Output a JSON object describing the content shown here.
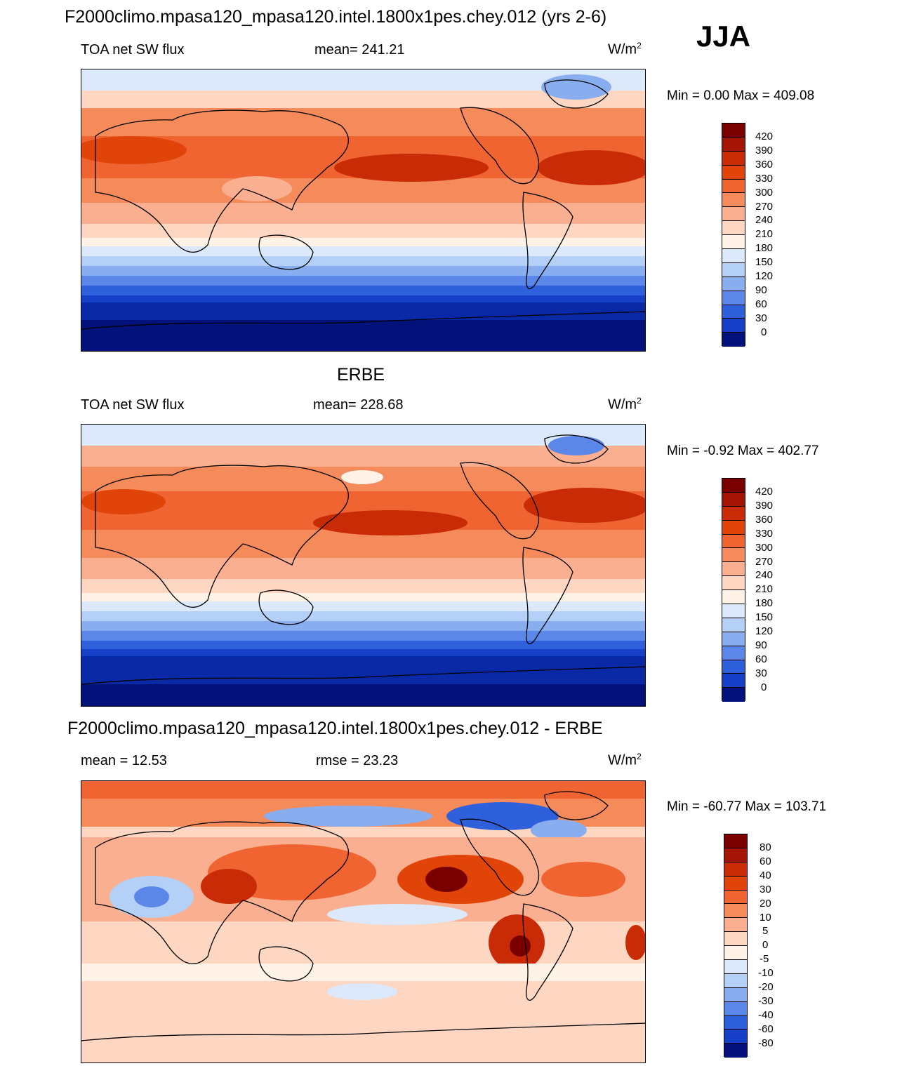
{
  "header": {
    "main_title": "F2000climo.mpasa120_mpasa120.intel.1800x1pes.chey.012 (yrs 2-6)",
    "season": "JJA"
  },
  "panels": [
    {
      "id": "model",
      "title": "",
      "left_label": "TOA net SW flux",
      "center_label": "mean= 241.21",
      "units_base": "W/m",
      "units_exp": "2",
      "minmax": "Min =   0.00 Max = 409.08",
      "levels": [
        "420",
        "390",
        "360",
        "330",
        "300",
        "270",
        "240",
        "210",
        "180",
        "150",
        "120",
        "90",
        "60",
        "30",
        "0"
      ],
      "colors": [
        "#7a0000",
        "#a51505",
        "#c92b06",
        "#e14408",
        "#ef6430",
        "#f58a5a",
        "#fab090",
        "#fdd7c1",
        "#fff2e6",
        "#dbe9fb",
        "#b4d0f7",
        "#88aef0",
        "#5a87e8",
        "#2f60db",
        "#1640c8",
        "#0a29a6",
        "#03127a"
      ],
      "colorbar_title": ""
    },
    {
      "id": "obs",
      "title": "ERBE",
      "left_label": "TOA net SW flux",
      "center_label": "mean= 228.68",
      "units_base": "W/m",
      "units_exp": "2",
      "minmax": "Min =  -0.92 Max = 402.77",
      "levels": [
        "420",
        "390",
        "360",
        "330",
        "300",
        "270",
        "240",
        "210",
        "180",
        "150",
        "120",
        "90",
        "60",
        "30",
        "0"
      ],
      "colors": [
        "#7a0000",
        "#a51505",
        "#c92b06",
        "#e14408",
        "#ef6430",
        "#f58a5a",
        "#fab090",
        "#fdd7c1",
        "#fff2e6",
        "#dbe9fb",
        "#b4d0f7",
        "#88aef0",
        "#5a87e8",
        "#2f60db",
        "#1640c8",
        "#0a29a6",
        "#03127a"
      ]
    },
    {
      "id": "diff",
      "title": "F2000climo.mpasa120_mpasa120.intel.1800x1pes.chey.012 - ERBE",
      "left_label": "mean =  12.53",
      "center_label": "rmse =  23.23",
      "units_base": "W/m",
      "units_exp": "2",
      "minmax": "Min = -60.77 Max = 103.71",
      "levels": [
        "80",
        "60",
        "40",
        "30",
        "20",
        "10",
        "5",
        "0",
        "-5",
        "-10",
        "-20",
        "-30",
        "-40",
        "-60",
        "-80"
      ],
      "colors": [
        "#7a0000",
        "#a51505",
        "#c92b06",
        "#e14408",
        "#ef6430",
        "#f58a5a",
        "#fab090",
        "#fdd7c1",
        "#fff2e6",
        "#dbe9fb",
        "#b4d0f7",
        "#88aef0",
        "#5a87e8",
        "#2f60db",
        "#1640c8",
        "#0a29a6",
        "#03127a"
      ]
    }
  ]
}
